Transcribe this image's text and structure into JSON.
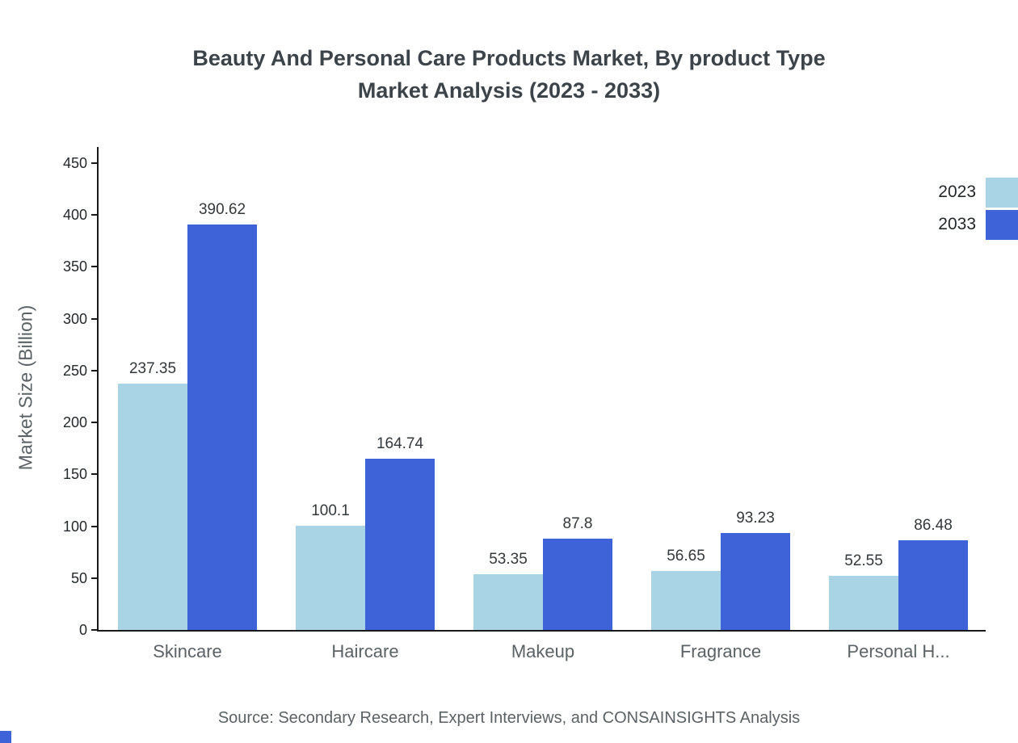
{
  "chart_data": {
    "type": "bar",
    "title_line1": "Beauty And Personal Care Products Market, By product Type",
    "title_line2": "Market Analysis (2023 - 2033)",
    "ylabel": "Market Size (Billion)",
    "xlabel": "",
    "categories": [
      "Skincare",
      "Haircare",
      "Makeup",
      "Fragrance",
      "Personal H..."
    ],
    "series": [
      {
        "name": "2023",
        "color": "#A9D4E5",
        "values": [
          237.35,
          100.1,
          53.35,
          56.65,
          52.55
        ]
      },
      {
        "name": "2033",
        "color": "#3E63D8",
        "values": [
          390.62,
          164.74,
          87.8,
          93.23,
          86.48
        ]
      }
    ],
    "ylim": [
      0,
      450
    ],
    "yticks": [
      0,
      50,
      100,
      150,
      200,
      250,
      300,
      350,
      400,
      450
    ],
    "grid": false,
    "legend_position": "top-right",
    "value_labels_shown": true
  },
  "source": {
    "text": "Source: Secondary Research, Expert Interviews, and CONSAINSIGHTS Analysis"
  },
  "colors": {
    "axis": "#1a1a1a",
    "title": "#3d4449",
    "muted_text": "#5b6266",
    "corner_mark": "#3E63D8"
  }
}
